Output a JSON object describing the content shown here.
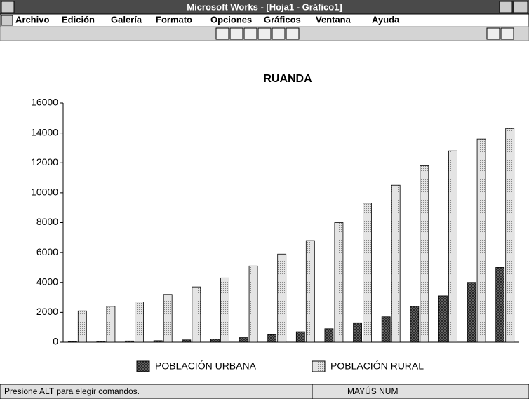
{
  "window": {
    "title": "Microsoft Works - [Hoja1 - Gráfico1]",
    "menu": [
      "Archivo",
      "Edición",
      "Galería",
      "Formato",
      "Opciones",
      "Gráficos",
      "Ventana",
      "Ayuda"
    ],
    "status": {
      "message": "Presione ALT para elegir comandos.",
      "keys": "MAYÚS NUM"
    }
  },
  "chart_data": {
    "type": "bar",
    "title": "RUANDA",
    "categories": [
      null,
      null,
      null,
      null,
      null,
      null,
      null,
      null,
      null,
      null,
      null,
      null,
      null,
      null,
      null,
      null
    ],
    "series": [
      {
        "name": "POBLACIÓN URBANA",
        "color": "#555555",
        "values": [
          50,
          60,
          80,
          100,
          150,
          200,
          300,
          500,
          700,
          900,
          1300,
          1700,
          2400,
          3100,
          4000,
          5000
        ]
      },
      {
        "name": "POBLACIÓN RURAL",
        "color": "#d8d8d8",
        "values": [
          2100,
          2400,
          2700,
          3200,
          3700,
          4300,
          5100,
          5900,
          6800,
          8000,
          9300,
          10500,
          11800,
          12800,
          13600,
          14300
        ]
      }
    ],
    "ylim": [
      0,
      16000
    ],
    "yticks": [
      0,
      2000,
      4000,
      6000,
      8000,
      10000,
      12000,
      14000,
      16000
    ],
    "legend": "bottom"
  }
}
